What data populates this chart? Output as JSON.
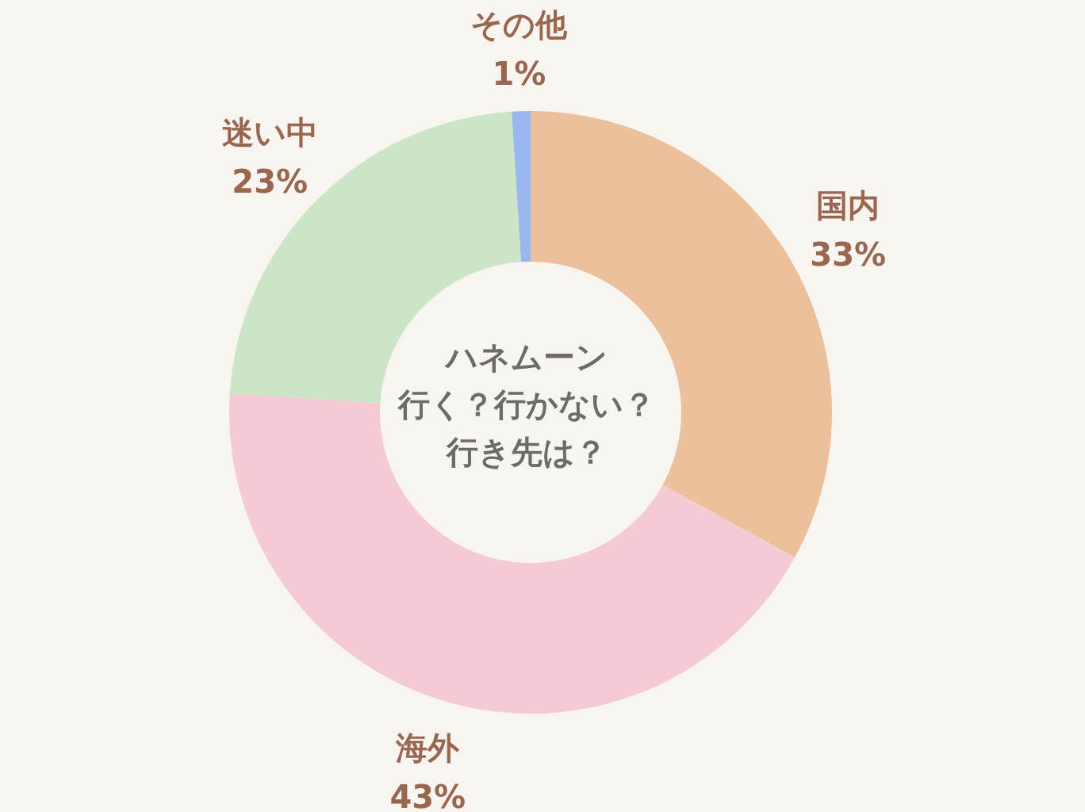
{
  "chart_data": {
    "type": "donut",
    "title": "ハネムーン",
    "subtitle": "行く？行かない？行き先は？",
    "categories": [
      "国内",
      "海外",
      "迷い中",
      "その他"
    ],
    "values": [
      33,
      43,
      23,
      1
    ],
    "value_labels": [
      "33%",
      "43%",
      "23%",
      "1%"
    ],
    "colors": [
      "#ebc09a",
      "#f4cbd4",
      "#cce5c6",
      "#9ab8ef"
    ]
  }
}
